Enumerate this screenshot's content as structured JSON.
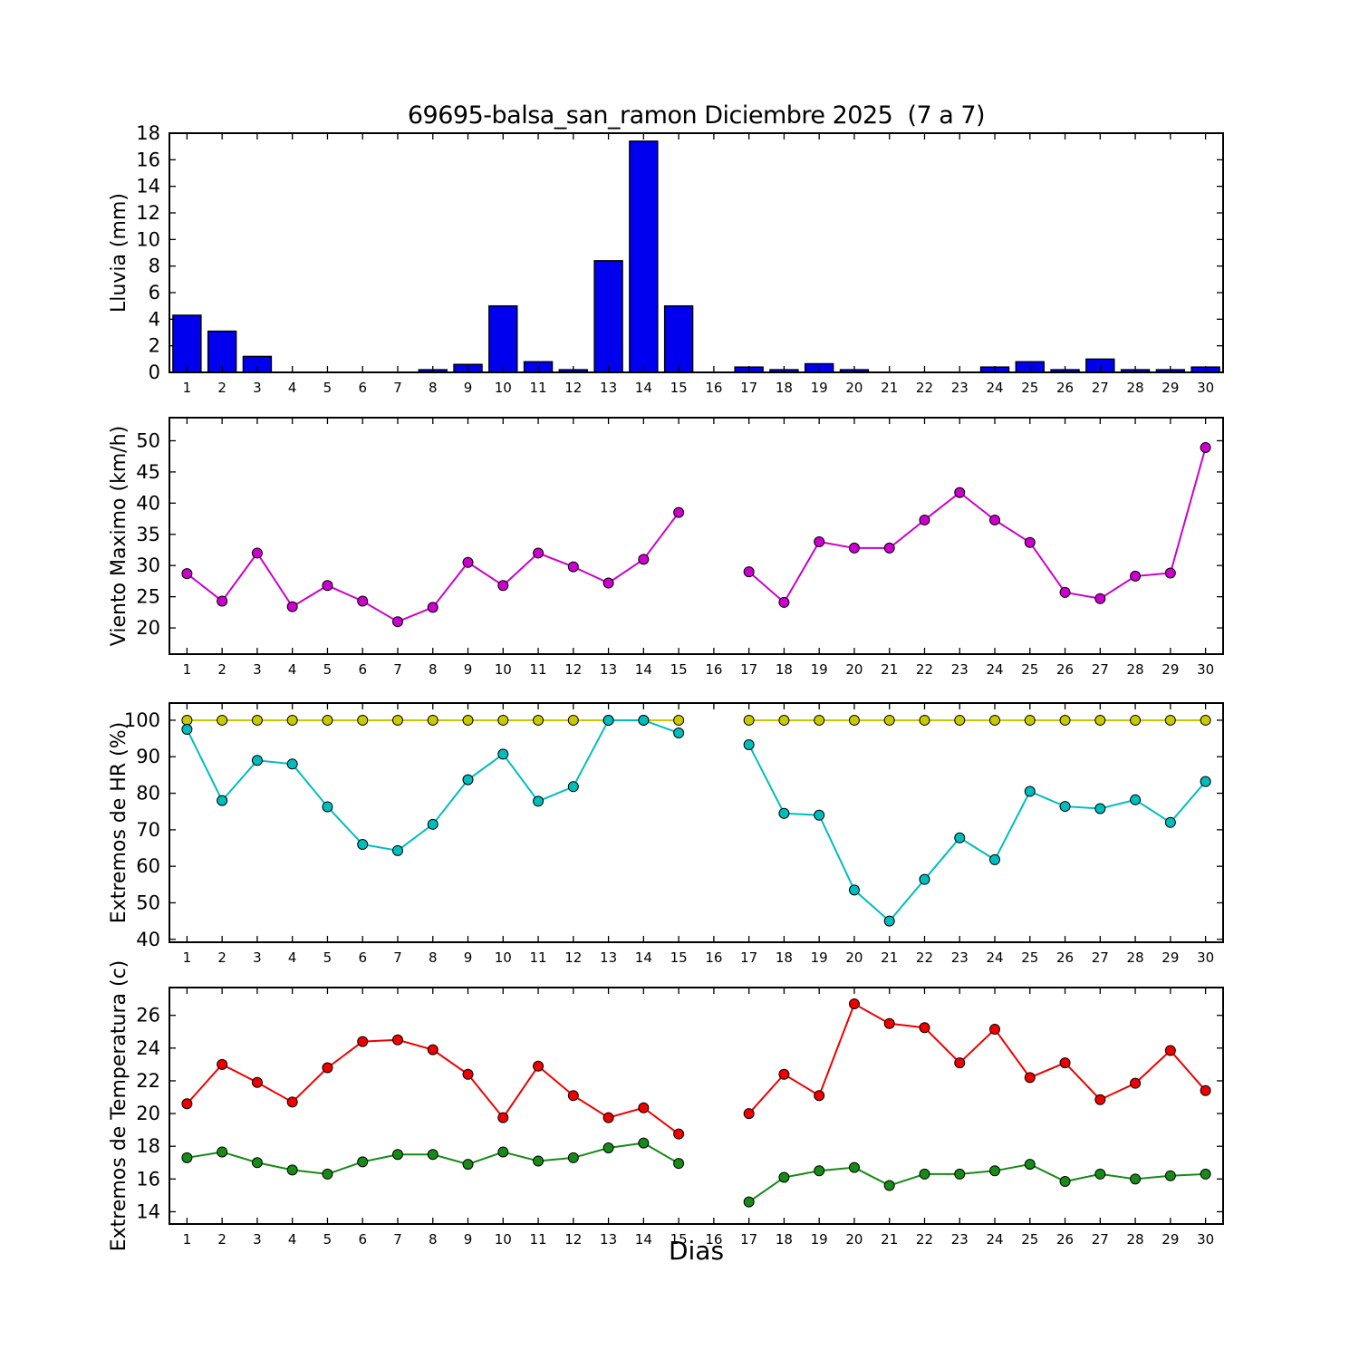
{
  "figure": {
    "title": "69695-balsa_san_ramon Diciembre 2025  (7 a 7)",
    "xlabel": "Dias"
  },
  "days": [
    1,
    2,
    3,
    4,
    5,
    6,
    7,
    8,
    9,
    10,
    11,
    12,
    13,
    14,
    15,
    16,
    17,
    18,
    19,
    20,
    21,
    22,
    23,
    24,
    25,
    26,
    27,
    28,
    29,
    30
  ],
  "chart_data": [
    {
      "type": "bar",
      "name": "lluvia",
      "title": "",
      "ylabel": "Lluvia (mm)",
      "xlabel": "",
      "ylim": [
        0,
        18
      ],
      "yticks": [
        0,
        2,
        4,
        6,
        8,
        10,
        12,
        14,
        16,
        18
      ],
      "xlim": [
        0.5,
        30.5
      ],
      "grid": false,
      "bar_color": "#0000ee",
      "bar_edge_color": "#000000",
      "values": [
        4.3,
        3.1,
        1.2,
        0,
        0,
        0,
        0,
        0.2,
        0.6,
        5.0,
        0.8,
        0.2,
        8.4,
        17.4,
        5.0,
        0,
        0.4,
        0.2,
        0.65,
        0.2,
        0,
        0,
        0,
        0.4,
        0.8,
        0.2,
        1.0,
        0.2,
        0.2,
        0.4
      ]
    },
    {
      "type": "line",
      "name": "viento_maximo",
      "title": "",
      "ylabel": "Viento Maximo (km/h)",
      "xlabel": "",
      "ylim": [
        15.8,
        53.7
      ],
      "yticks": [
        20,
        25,
        30,
        35,
        40,
        45,
        50
      ],
      "xlim": [
        0.5,
        30.5
      ],
      "grid": false,
      "series": [
        {
          "name": "viento_maximo",
          "color": "#cc00cc",
          "marker": "circle",
          "values": [
            28.7,
            24.3,
            32.0,
            23.4,
            26.8,
            24.3,
            21.0,
            23.3,
            30.5,
            26.8,
            32.0,
            29.8,
            27.2,
            31.0,
            38.5,
            null,
            29.0,
            24.1,
            33.8,
            32.8,
            32.8,
            37.3,
            41.7,
            37.3,
            33.7,
            25.7,
            24.7,
            28.3,
            28.8,
            48.9
          ]
        }
      ]
    },
    {
      "type": "line",
      "name": "extremos_hr",
      "title": "",
      "ylabel": "Extremos de HR (%)",
      "xlabel": "",
      "ylim": [
        39.2,
        104.7
      ],
      "yticks": [
        40,
        50,
        60,
        70,
        80,
        90,
        100
      ],
      "xlim": [
        0.5,
        30.5
      ],
      "grid": false,
      "series": [
        {
          "name": "hr_maxima",
          "color": "#c9c900",
          "marker": "circle",
          "values": [
            100,
            100,
            100,
            100,
            100,
            100,
            100,
            100,
            100,
            100,
            100,
            100,
            100,
            100,
            100,
            null,
            100,
            100,
            100,
            100,
            100,
            100,
            100,
            100,
            100,
            100,
            100,
            100,
            100,
            100
          ]
        },
        {
          "name": "hr_minima",
          "color": "#00bdbd",
          "marker": "circle",
          "values": [
            97.5,
            78,
            89,
            88,
            76.3,
            66,
            64.3,
            71.5,
            83.7,
            90.7,
            77.8,
            81.8,
            100,
            100,
            96.5,
            null,
            93.3,
            74.5,
            74,
            53.5,
            45,
            56.4,
            67.8,
            61.8,
            80.5,
            76.4,
            75.8,
            78.2,
            72,
            83.2
          ]
        }
      ]
    },
    {
      "type": "line",
      "name": "extremos_temperatura",
      "title": "",
      "ylabel": "Extremos de Temperatura (c)",
      "xlabel": "Dias",
      "ylim": [
        13.25,
        27.7
      ],
      "yticks": [
        14,
        16,
        18,
        20,
        22,
        24,
        26
      ],
      "xlim": [
        0.5,
        30.5
      ],
      "grid": false,
      "series": [
        {
          "name": "temperatura_maxima",
          "color": "#ee0000",
          "marker": "circle",
          "values": [
            20.6,
            23.0,
            21.9,
            20.7,
            22.8,
            24.4,
            24.5,
            23.9,
            22.4,
            19.75,
            22.9,
            21.1,
            19.75,
            20.35,
            18.75,
            null,
            20.0,
            22.4,
            21.1,
            26.7,
            25.5,
            25.25,
            23.1,
            25.15,
            22.2,
            23.1,
            20.85,
            21.85,
            23.85,
            21.4
          ]
        },
        {
          "name": "temperatura_minima",
          "color": "#178a17",
          "marker": "circle",
          "values": [
            17.3,
            17.65,
            17.0,
            16.55,
            16.3,
            17.05,
            17.5,
            17.5,
            16.9,
            17.65,
            17.1,
            17.3,
            17.9,
            18.2,
            16.95,
            null,
            14.6,
            16.1,
            16.5,
            16.7,
            15.6,
            16.3,
            16.3,
            16.5,
            16.9,
            15.85,
            16.3,
            16.0,
            16.2,
            16.3
          ]
        }
      ]
    }
  ]
}
